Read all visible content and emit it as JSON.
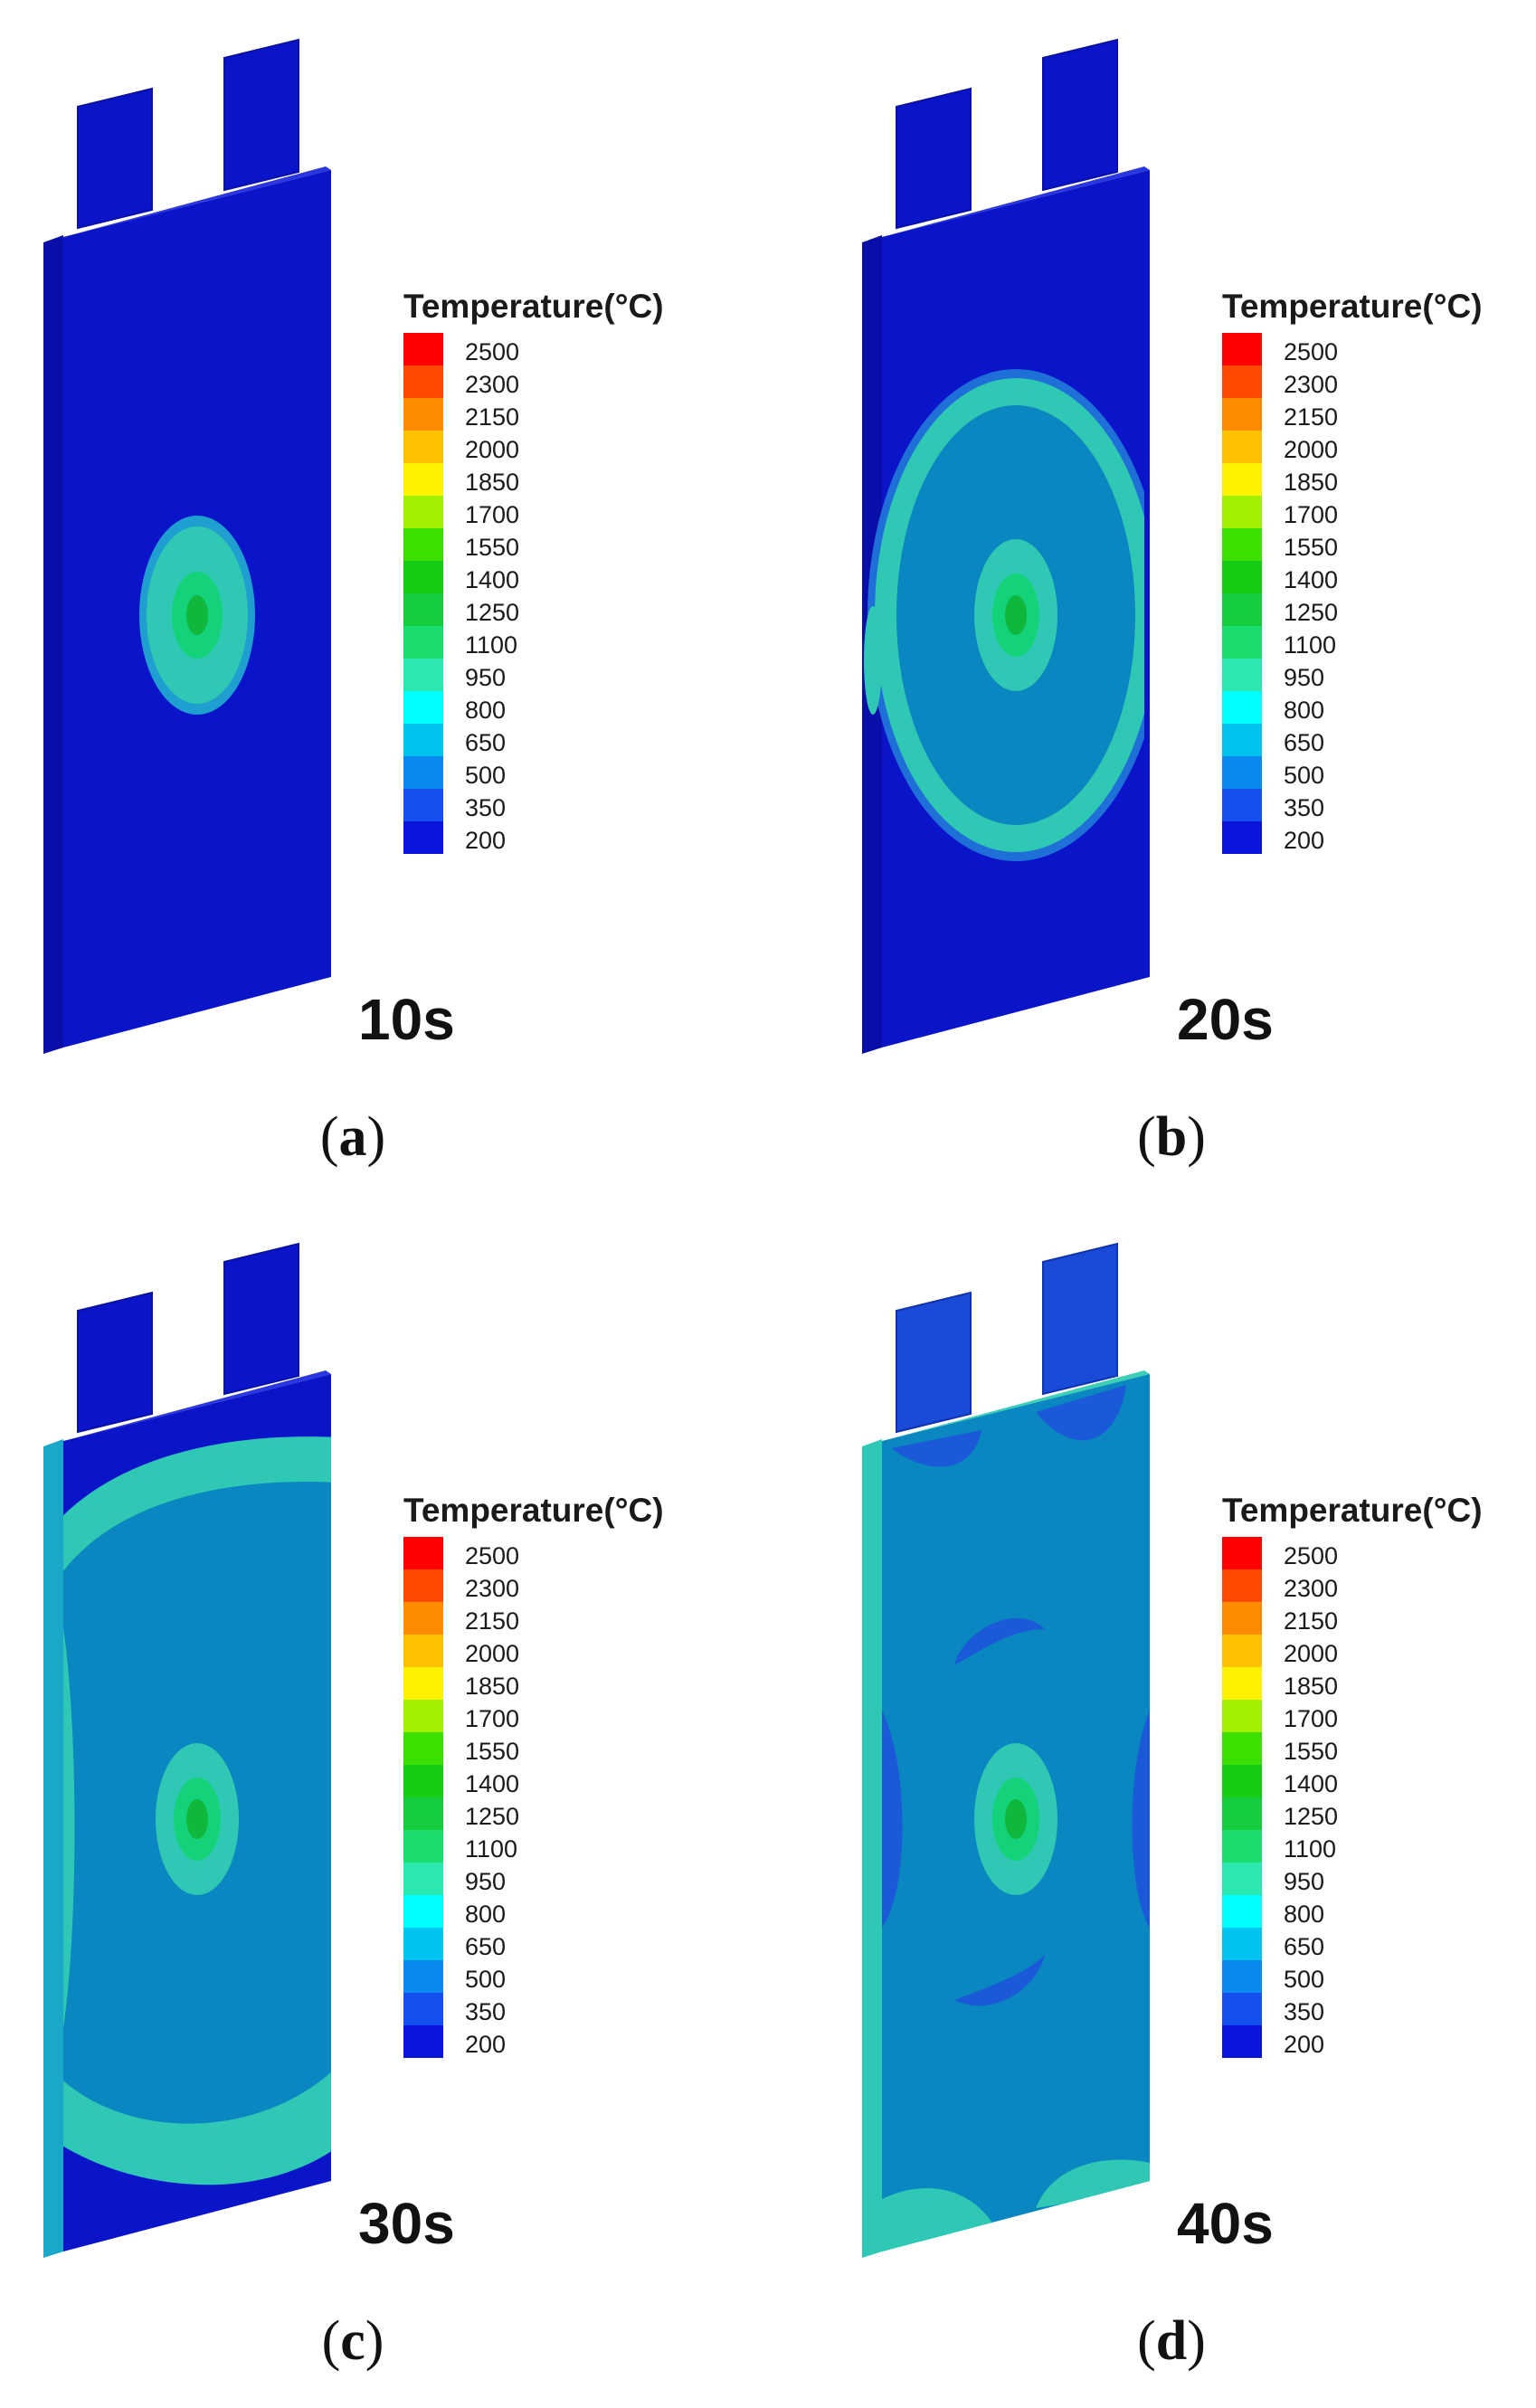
{
  "colors": {
    "legend": [
      "#ff0000",
      "#ff4a00",
      "#ff8c00",
      "#ffc200",
      "#fff200",
      "#a0f000",
      "#3ce000",
      "#14cc14",
      "#14cc3c",
      "#1add6e",
      "#2ae8b0",
      "#00ffff",
      "#00c4f0",
      "#0a8af0",
      "#1450f0",
      "#0a14dc"
    ],
    "cool": "#0a14c8",
    "mid": "#0a87c0",
    "ring": "#2ec8b4",
    "hot": "#0fc83c"
  },
  "legend": {
    "title": "Temperature(°C)",
    "ticks": [
      "2500",
      "2300",
      "2150",
      "2000",
      "1850",
      "1700",
      "1550",
      "1400",
      "1250",
      "1100",
      "950",
      "800",
      "650",
      "500",
      "350",
      "200"
    ]
  },
  "panels": [
    {
      "time": "10s",
      "caption": "a"
    },
    {
      "time": "20s",
      "caption": "b"
    },
    {
      "time": "30s",
      "caption": "c"
    },
    {
      "time": "40s",
      "caption": "d"
    }
  ]
}
